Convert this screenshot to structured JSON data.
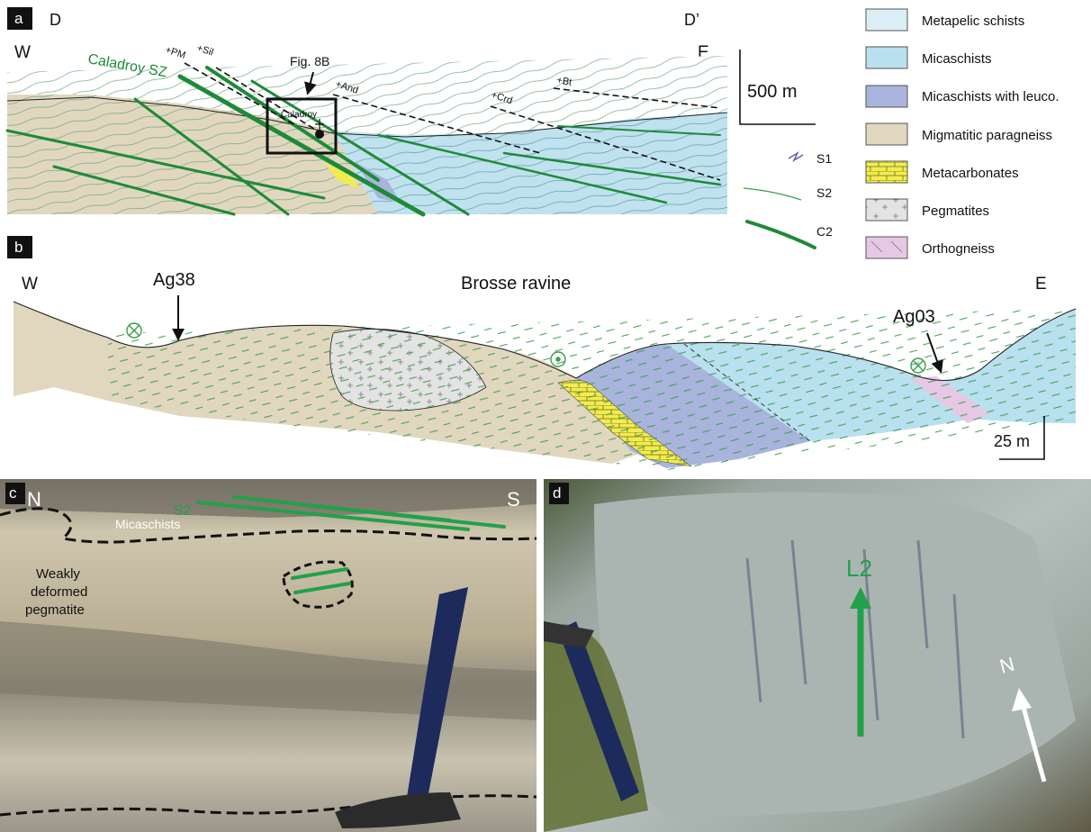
{
  "panel_a": {
    "letter": "a",
    "left_end": "D",
    "right_end": "D’",
    "west": "W",
    "east": "E",
    "shear_zone": "Caladroy SZ",
    "isograds": [
      "+PM",
      "+Sil",
      "+And",
      "+Crd",
      "+Bt"
    ],
    "fig_ref": "Fig. 8B",
    "locality": "Caladroy",
    "scale": "500 m"
  },
  "legend": {
    "units": [
      {
        "label": "Metapelic schists",
        "color": "#dbeef5"
      },
      {
        "label": "Micaschists",
        "color": "#b9e0ee"
      },
      {
        "label": "Micaschists with leuco.",
        "color": "#a8b4dc"
      },
      {
        "label": "Migmatitic paragneiss",
        "color": "#e1d7bf"
      },
      {
        "label": "Metacarbonates",
        "color": "#f2ec4e"
      },
      {
        "label": "Pegmatites",
        "color": "#e3e3e3"
      },
      {
        "label": "Orthogneiss",
        "color": "#e6c8e4"
      }
    ],
    "structures": [
      "S1",
      "S2",
      "C2"
    ]
  },
  "panel_b": {
    "letter": "b",
    "west": "W",
    "east": "E",
    "title": "Brosse ravine",
    "samples": [
      "Ag38",
      "Ag03"
    ],
    "scale": "25 m"
  },
  "panel_c": {
    "letter": "c",
    "north": "N",
    "south": "S",
    "foliation": "S2",
    "unit": "Micaschists",
    "pegmatite_l1": "Weakly",
    "pegmatite_l2": "deformed",
    "pegmatite_l3": "pegmatite"
  },
  "panel_d": {
    "letter": "d",
    "lineation": "L2",
    "north": "N"
  }
}
